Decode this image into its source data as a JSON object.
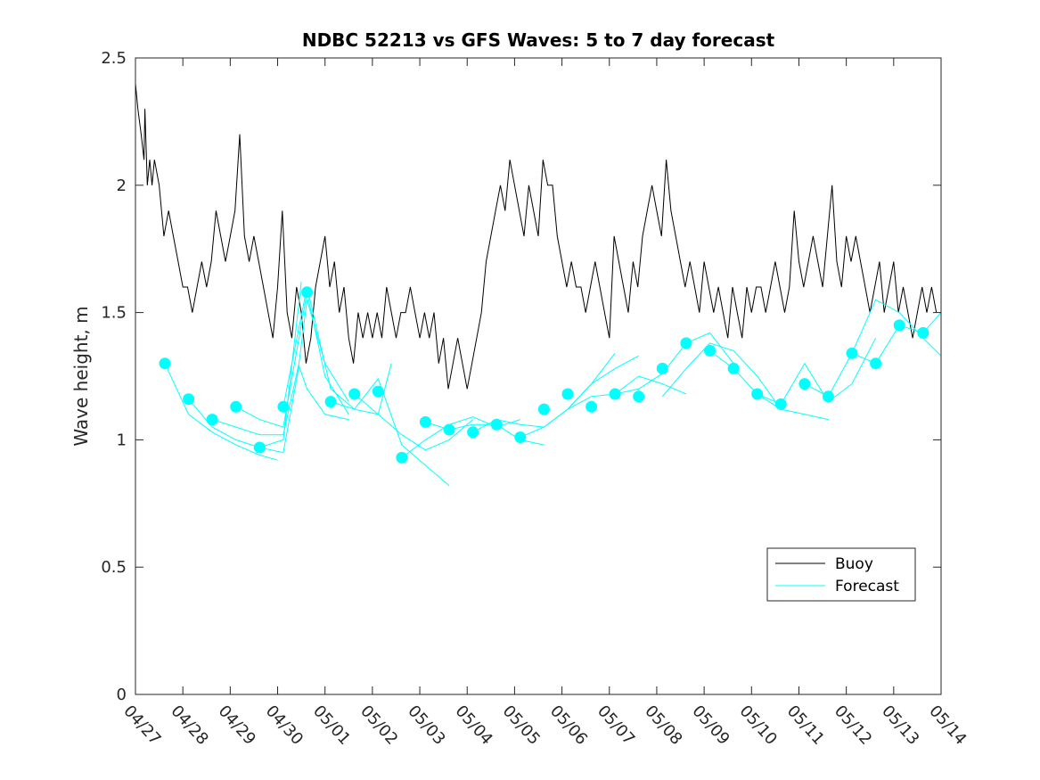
{
  "chart_data": {
    "type": "line",
    "title": "NDBC 52213 vs GFS Waves: 5 to 7 day forecast",
    "xlabel": "",
    "ylabel": "Wave height, m",
    "xlim": [
      "04/27",
      "05/14"
    ],
    "ylim": [
      0,
      2.5
    ],
    "x_ticks": [
      "04/27",
      "04/28",
      "04/29",
      "04/30",
      "05/01",
      "05/02",
      "05/03",
      "05/04",
      "05/05",
      "05/06",
      "05/07",
      "05/08",
      "05/09",
      "05/10",
      "05/11",
      "05/12",
      "05/13",
      "05/14"
    ],
    "y_ticks": [
      "0",
      "0.5",
      "1",
      "1.5",
      "2",
      "2.5"
    ],
    "grid": false,
    "legend_position": "bottom-right",
    "colors": {
      "buoy": "#000000",
      "forecast": "#00ffff",
      "axes": "#262626"
    },
    "series": [
      {
        "name": "Buoy",
        "style": "line",
        "x_days_from_0427": [
          0,
          0.05,
          0.12,
          0.18,
          0.2,
          0.25,
          0.3,
          0.35,
          0.4,
          0.5,
          0.6,
          0.7,
          0.8,
          0.9,
          1.0,
          1.1,
          1.2,
          1.3,
          1.4,
          1.5,
          1.6,
          1.7,
          1.8,
          1.9,
          2.0,
          2.1,
          2.2,
          2.3,
          2.4,
          2.5,
          2.6,
          2.7,
          2.8,
          2.9,
          3.0,
          3.1,
          3.2,
          3.3,
          3.4,
          3.5,
          3.6,
          3.7,
          3.8,
          3.9,
          4.0,
          4.1,
          4.2,
          4.3,
          4.4,
          4.5,
          4.6,
          4.7,
          4.8,
          4.9,
          5.0,
          5.1,
          5.2,
          5.3,
          5.4,
          5.5,
          5.6,
          5.7,
          5.8,
          5.9,
          6.0,
          6.1,
          6.2,
          6.3,
          6.4,
          6.5,
          6.6,
          6.7,
          6.8,
          6.9,
          7.0,
          7.1,
          7.2,
          7.3,
          7.4,
          7.5,
          7.6,
          7.7,
          7.8,
          7.9,
          8.0,
          8.1,
          8.2,
          8.3,
          8.4,
          8.5,
          8.6,
          8.7,
          8.8,
          8.9,
          9.0,
          9.1,
          9.2,
          9.3,
          9.4,
          9.5,
          9.6,
          9.7,
          9.8,
          9.9,
          10.0,
          10.1,
          10.2,
          10.3,
          10.4,
          10.5,
          10.6,
          10.7,
          10.8,
          10.9,
          11.0,
          11.1,
          11.2,
          11.3,
          11.4,
          11.5,
          11.6,
          11.7,
          11.8,
          11.9,
          12.0,
          12.1,
          12.2,
          12.3,
          12.4,
          12.5,
          12.6,
          12.7,
          12.8,
          12.9,
          13.0,
          13.1,
          13.2,
          13.3,
          13.4,
          13.5,
          13.6,
          13.7,
          13.8,
          13.9,
          14.0,
          14.1,
          14.2,
          14.3,
          14.4,
          14.5,
          14.6,
          14.7,
          14.8,
          14.9,
          15.0,
          15.1,
          15.2,
          15.3,
          15.4,
          15.5,
          15.6,
          15.7,
          15.8,
          15.9,
          16.0,
          16.1,
          16.2,
          16.3,
          16.4,
          16.5,
          16.6,
          16.7,
          16.8,
          16.9
        ],
        "values": [
          2.4,
          2.3,
          2.2,
          2.1,
          2.3,
          2.0,
          2.1,
          2.0,
          2.1,
          2.0,
          1.8,
          1.9,
          1.8,
          1.7,
          1.6,
          1.6,
          1.5,
          1.6,
          1.7,
          1.6,
          1.7,
          1.9,
          1.8,
          1.7,
          1.8,
          1.9,
          2.2,
          1.8,
          1.7,
          1.8,
          1.7,
          1.6,
          1.5,
          1.4,
          1.6,
          1.9,
          1.5,
          1.4,
          1.6,
          1.5,
          1.3,
          1.4,
          1.6,
          1.7,
          1.8,
          1.6,
          1.7,
          1.5,
          1.6,
          1.4,
          1.3,
          1.5,
          1.4,
          1.5,
          1.4,
          1.5,
          1.4,
          1.6,
          1.5,
          1.4,
          1.5,
          1.5,
          1.6,
          1.5,
          1.4,
          1.5,
          1.4,
          1.5,
          1.3,
          1.4,
          1.2,
          1.3,
          1.4,
          1.3,
          1.2,
          1.3,
          1.4,
          1.5,
          1.7,
          1.8,
          1.9,
          2.0,
          1.9,
          2.1,
          2.0,
          1.9,
          1.8,
          2.0,
          1.9,
          1.8,
          2.1,
          2.0,
          2.0,
          1.8,
          1.7,
          1.6,
          1.7,
          1.6,
          1.6,
          1.5,
          1.6,
          1.7,
          1.6,
          1.5,
          1.4,
          1.8,
          1.7,
          1.6,
          1.5,
          1.7,
          1.6,
          1.8,
          1.9,
          2.0,
          1.9,
          1.8,
          2.1,
          1.9,
          1.8,
          1.7,
          1.6,
          1.7,
          1.6,
          1.5,
          1.7,
          1.6,
          1.5,
          1.6,
          1.5,
          1.4,
          1.6,
          1.5,
          1.4,
          1.6,
          1.5,
          1.6,
          1.6,
          1.5,
          1.6,
          1.7,
          1.6,
          1.5,
          1.6,
          1.9,
          1.7,
          1.6,
          1.7,
          1.8,
          1.7,
          1.6,
          1.8,
          2.0,
          1.7,
          1.6,
          1.8,
          1.7,
          1.8,
          1.7,
          1.6,
          1.5,
          1.6,
          1.7,
          1.5,
          1.6,
          1.7,
          1.5,
          1.6,
          1.5,
          1.4,
          1.5,
          1.6,
          1.5,
          1.6,
          1.5
        ]
      },
      {
        "name": "Forecast",
        "style": "line+markers",
        "marker_x_days_from_0427": [
          0.62,
          1.12,
          1.62,
          2.12,
          2.62,
          3.12,
          3.62,
          4.12,
          4.62,
          5.12,
          5.62,
          6.12,
          6.62,
          7.12,
          7.62,
          8.12,
          8.62,
          9.12,
          9.62,
          10.12,
          10.62,
          11.12,
          11.62,
          12.12,
          12.62,
          13.12,
          13.62,
          14.12,
          14.62,
          15.12,
          15.62,
          16.12,
          16.62
        ],
        "marker_values": [
          1.3,
          1.16,
          1.08,
          1.13,
          0.97,
          1.13,
          1.58,
          1.15,
          1.18,
          1.19,
          0.93,
          1.07,
          1.04,
          1.03,
          1.06,
          1.01,
          1.12,
          1.18,
          1.13,
          1.18,
          1.17,
          1.28,
          1.38,
          1.35,
          1.28,
          1.18,
          1.14,
          1.22,
          1.17,
          1.34,
          1.3,
          1.45,
          1.42
        ],
        "runs": [
          {
            "x_days_from_0427": [
              0.62,
              1.12,
              1.62,
              2.12,
              2.62,
              3.0
            ],
            "values": [
              1.3,
              1.1,
              1.03,
              0.98,
              0.94,
              0.92
            ]
          },
          {
            "x_days_from_0427": [
              1.12,
              1.62,
              2.12,
              2.62,
              3.12,
              3.5
            ],
            "values": [
              1.16,
              1.05,
              1.0,
              0.97,
              1.0,
              1.62
            ]
          },
          {
            "x_days_from_0427": [
              1.62,
              2.12,
              2.62,
              3.12,
              3.45,
              3.62,
              4.0,
              4.5
            ],
            "values": [
              1.08,
              1.05,
              1.02,
              1.02,
              1.3,
              1.55,
              1.3,
              1.15
            ]
          },
          {
            "x_days_from_0427": [
              2.12,
              2.62,
              3.12,
              3.45,
              3.62,
              4.0,
              4.5
            ],
            "values": [
              1.13,
              1.08,
              1.05,
              1.4,
              1.58,
              1.25,
              1.1
            ]
          },
          {
            "x_days_from_0427": [
              2.62,
              3.12,
              3.45,
              3.62,
              4.0,
              4.5
            ],
            "values": [
              0.97,
              0.95,
              1.29,
              1.2,
              1.1,
              1.08
            ]
          },
          {
            "x_days_from_0427": [
              3.12,
              3.62,
              4.12,
              4.62,
              5.12,
              5.4
            ],
            "values": [
              1.13,
              1.6,
              1.2,
              1.12,
              1.1,
              1.3
            ]
          },
          {
            "x_days_from_0427": [
              4.12,
              4.62,
              5.12,
              5.62,
              6.12,
              6.62
            ],
            "values": [
              1.15,
              1.12,
              1.24,
              0.98,
              0.9,
              0.82
            ]
          },
          {
            "x_days_from_0427": [
              4.62,
              5.12,
              5.62,
              6.12,
              6.62,
              7.12
            ],
            "values": [
              1.18,
              1.1,
              1.02,
              0.96,
              1.0,
              1.08
            ]
          },
          {
            "x_days_from_0427": [
              5.62,
              6.12,
              6.62,
              7.12,
              7.62,
              8.12
            ],
            "values": [
              0.93,
              1.0,
              1.06,
              1.09,
              1.05,
              1.08
            ]
          },
          {
            "x_days_from_0427": [
              6.12,
              6.62,
              7.12,
              7.62,
              8.12,
              8.62
            ],
            "values": [
              1.07,
              1.04,
              1.06,
              1.06,
              1.0,
              0.98
            ]
          },
          {
            "x_days_from_0427": [
              7.12,
              7.62,
              8.12,
              8.62,
              9.12,
              9.62,
              10.12
            ],
            "values": [
              1.03,
              1.08,
              1.06,
              1.05,
              1.12,
              1.22,
              1.34
            ]
          },
          {
            "x_days_from_0427": [
              8.12,
              8.62,
              9.12,
              9.62,
              10.12,
              10.62
            ],
            "values": [
              1.01,
              1.05,
              1.12,
              1.22,
              1.28,
              1.33
            ]
          },
          {
            "x_days_from_0427": [
              9.12,
              9.62,
              10.12,
              10.62,
              11.12,
              11.62
            ],
            "values": [
              1.12,
              1.17,
              1.18,
              1.25,
              1.22,
              1.18
            ]
          },
          {
            "x_days_from_0427": [
              10.12,
              10.62,
              11.12,
              11.62,
              12.12,
              12.62
            ],
            "values": [
              1.18,
              1.2,
              1.26,
              1.38,
              1.42,
              1.3
            ]
          },
          {
            "x_days_from_0427": [
              11.12,
              11.62,
              12.12,
              12.62,
              13.12,
              13.62
            ],
            "values": [
              1.17,
              1.28,
              1.38,
              1.35,
              1.25,
              1.12
            ]
          },
          {
            "x_days_from_0427": [
              12.12,
              12.62,
              13.12,
              13.62,
              14.12,
              14.62
            ],
            "values": [
              1.35,
              1.28,
              1.18,
              1.12,
              1.1,
              1.08
            ]
          },
          {
            "x_days_from_0427": [
              13.12,
              13.62,
              14.12,
              14.62,
              15.12,
              15.62
            ],
            "values": [
              1.18,
              1.14,
              1.3,
              1.15,
              1.22,
              1.4
            ]
          },
          {
            "x_days_from_0427": [
              14.12,
              14.62,
              15.12,
              15.62,
              16.12,
              16.62,
              17.0
            ],
            "values": [
              1.22,
              1.17,
              1.34,
              1.3,
              1.45,
              1.42,
              1.5
            ]
          },
          {
            "x_days_from_0427": [
              15.12,
              15.62,
              16.12,
              16.62,
              17.0
            ],
            "values": [
              1.34,
              1.55,
              1.5,
              1.4,
              1.33
            ]
          }
        ]
      }
    ]
  }
}
